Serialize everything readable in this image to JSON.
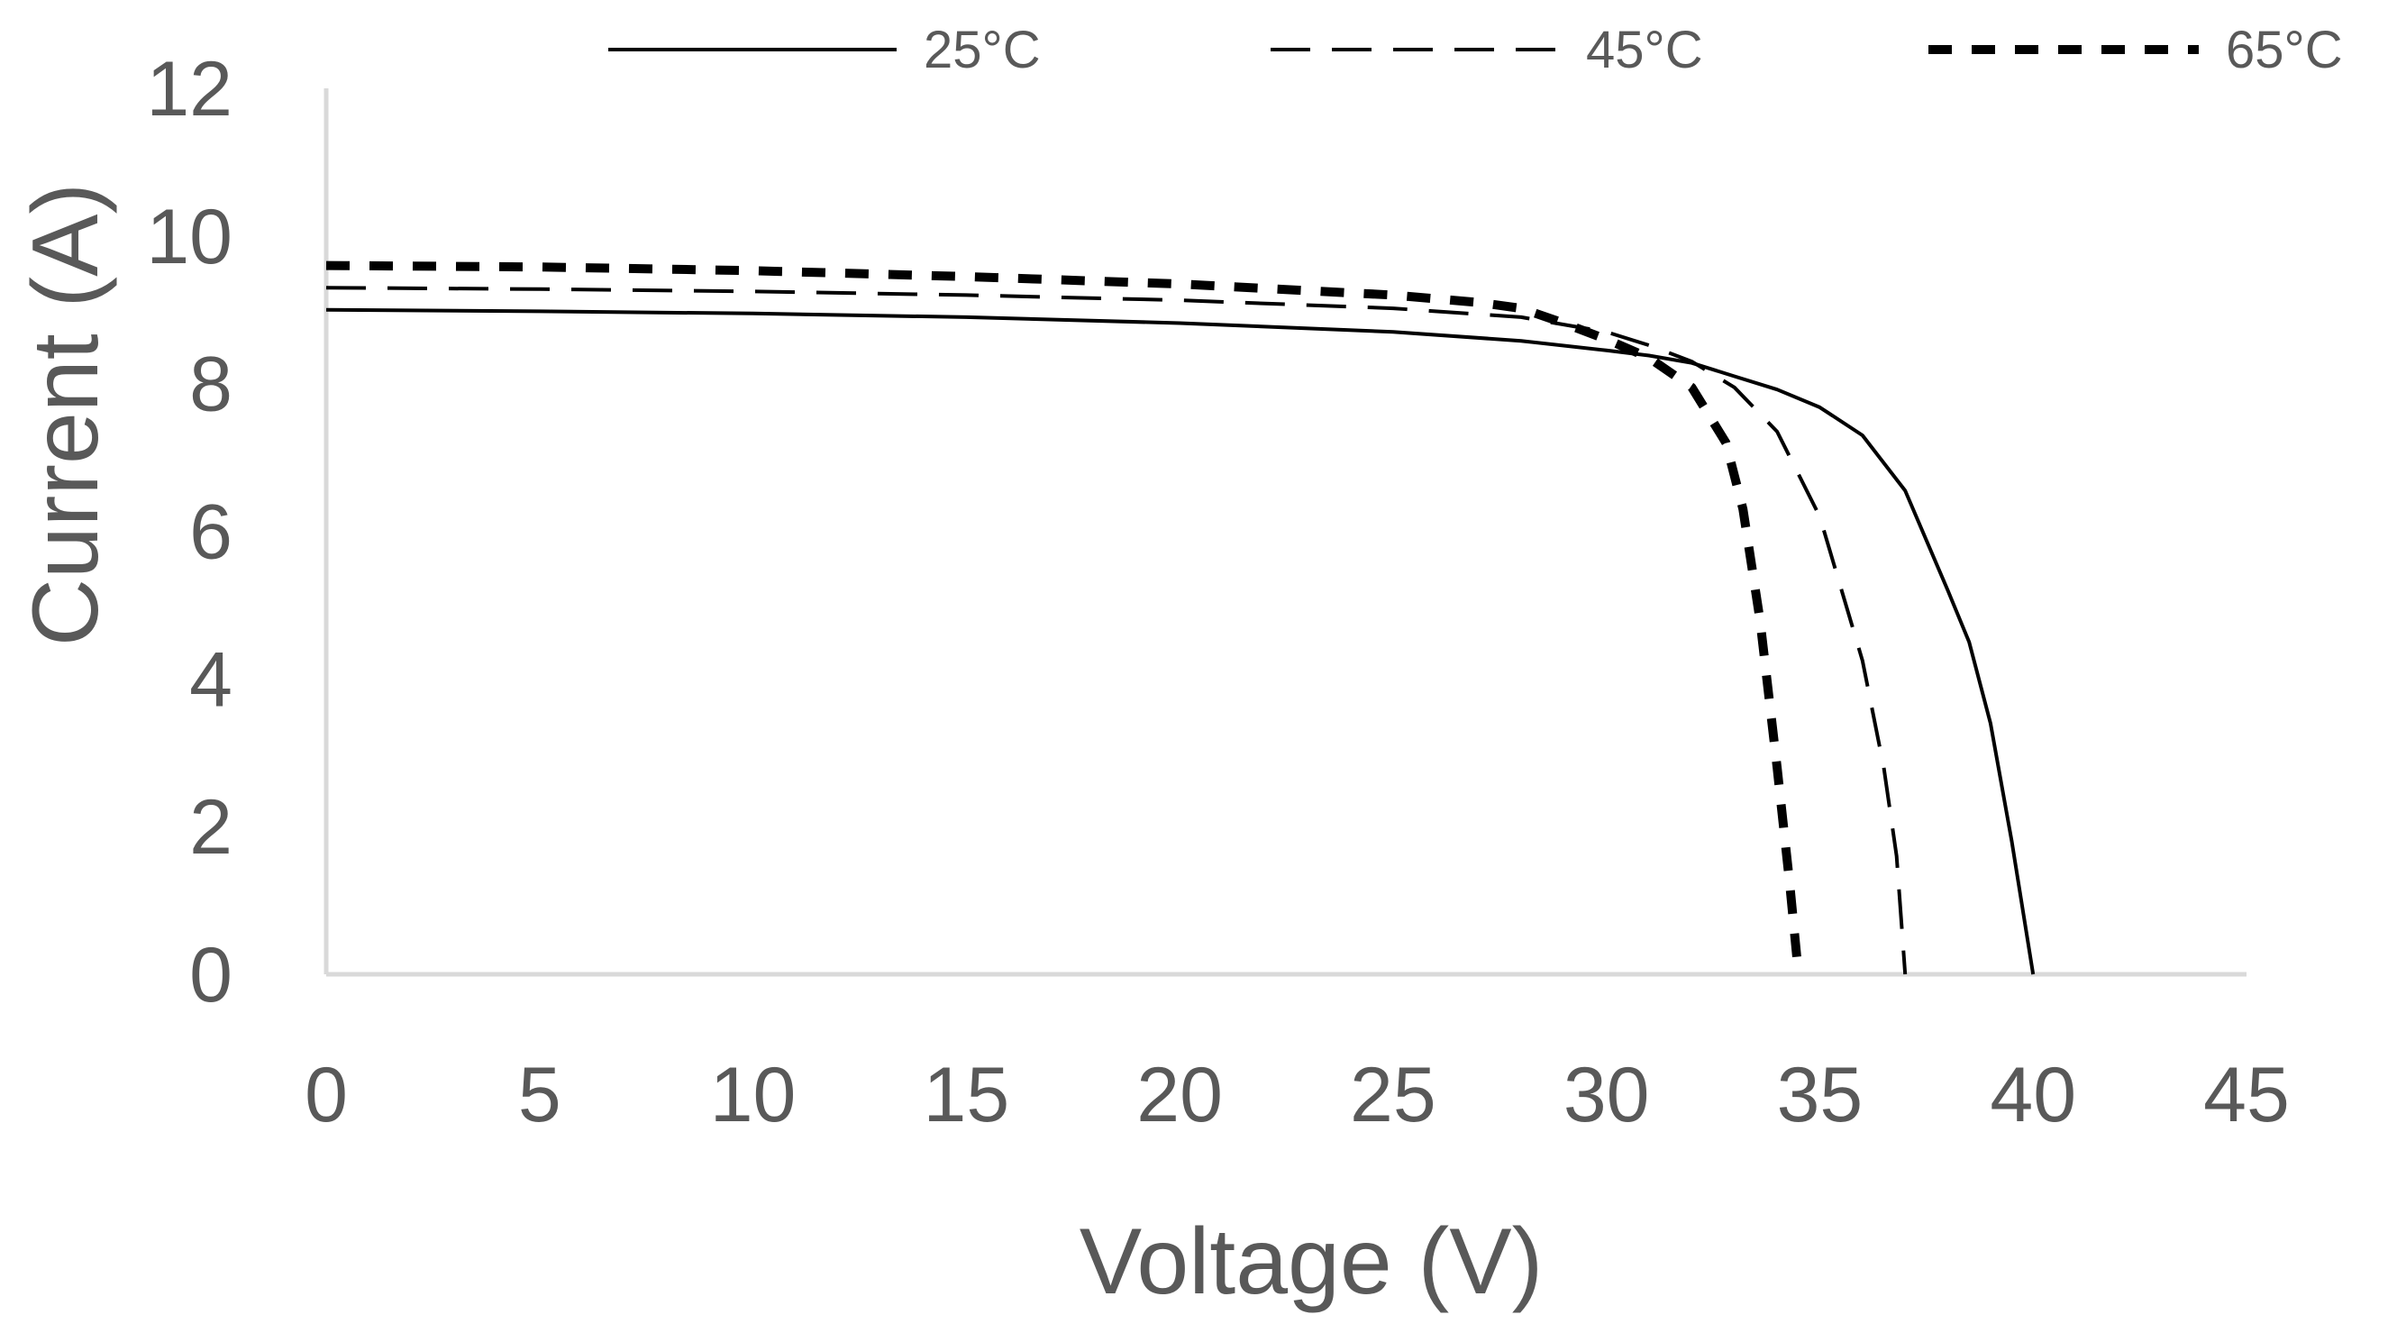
{
  "chart_data": {
    "type": "line",
    "title": "",
    "xlabel": "Voltage (V)",
    "ylabel": "Current (A)",
    "xlim": [
      0,
      45
    ],
    "ylim": [
      0,
      12
    ],
    "xticks": [
      0,
      5,
      10,
      15,
      20,
      25,
      30,
      35,
      40,
      45
    ],
    "yticks": [
      0,
      2,
      4,
      6,
      8,
      10,
      12
    ],
    "grid": false,
    "legend_position": "top",
    "colors": {
      "series": "#000000",
      "axis": "#d9d9d9",
      "text": "#595959"
    },
    "series": [
      {
        "name": "25°C",
        "style": "solid",
        "points": [
          [
            0,
            9.0
          ],
          [
            5,
            8.98
          ],
          [
            10,
            8.95
          ],
          [
            15,
            8.9
          ],
          [
            20,
            8.82
          ],
          [
            25,
            8.7
          ],
          [
            28,
            8.58
          ],
          [
            30,
            8.45
          ],
          [
            31,
            8.38
          ],
          [
            32,
            8.28
          ],
          [
            33,
            8.1
          ],
          [
            34,
            7.92
          ],
          [
            35,
            7.68
          ],
          [
            36,
            7.3
          ],
          [
            37,
            6.55
          ],
          [
            38,
            5.2
          ],
          [
            38.5,
            4.5
          ],
          [
            39,
            3.4
          ],
          [
            39.5,
            1.8
          ],
          [
            40.0,
            0
          ]
        ]
      },
      {
        "name": "45°C",
        "style": "dashed",
        "points": [
          [
            0,
            9.3
          ],
          [
            5,
            9.28
          ],
          [
            10,
            9.25
          ],
          [
            15,
            9.2
          ],
          [
            20,
            9.13
          ],
          [
            25,
            9.02
          ],
          [
            28,
            8.9
          ],
          [
            30,
            8.7
          ],
          [
            31,
            8.52
          ],
          [
            32,
            8.3
          ],
          [
            33,
            7.95
          ],
          [
            34,
            7.35
          ],
          [
            35,
            6.2
          ],
          [
            36,
            4.25
          ],
          [
            36.5,
            2.8
          ],
          [
            36.8,
            1.6
          ],
          [
            37.0,
            0
          ]
        ]
      },
      {
        "name": "65°C",
        "style": "dotted-dash",
        "points": [
          [
            0,
            9.6
          ],
          [
            5,
            9.58
          ],
          [
            10,
            9.53
          ],
          [
            15,
            9.45
          ],
          [
            20,
            9.35
          ],
          [
            25,
            9.2
          ],
          [
            27,
            9.1
          ],
          [
            28,
            9.02
          ],
          [
            29,
            8.82
          ],
          [
            30,
            8.6
          ],
          [
            31,
            8.35
          ],
          [
            32,
            7.95
          ],
          [
            32.8,
            7.2
          ],
          [
            33.2,
            6.3
          ],
          [
            33.6,
            4.8
          ],
          [
            34.0,
            2.8
          ],
          [
            34.3,
            1.2
          ],
          [
            34.5,
            0
          ]
        ]
      }
    ]
  }
}
